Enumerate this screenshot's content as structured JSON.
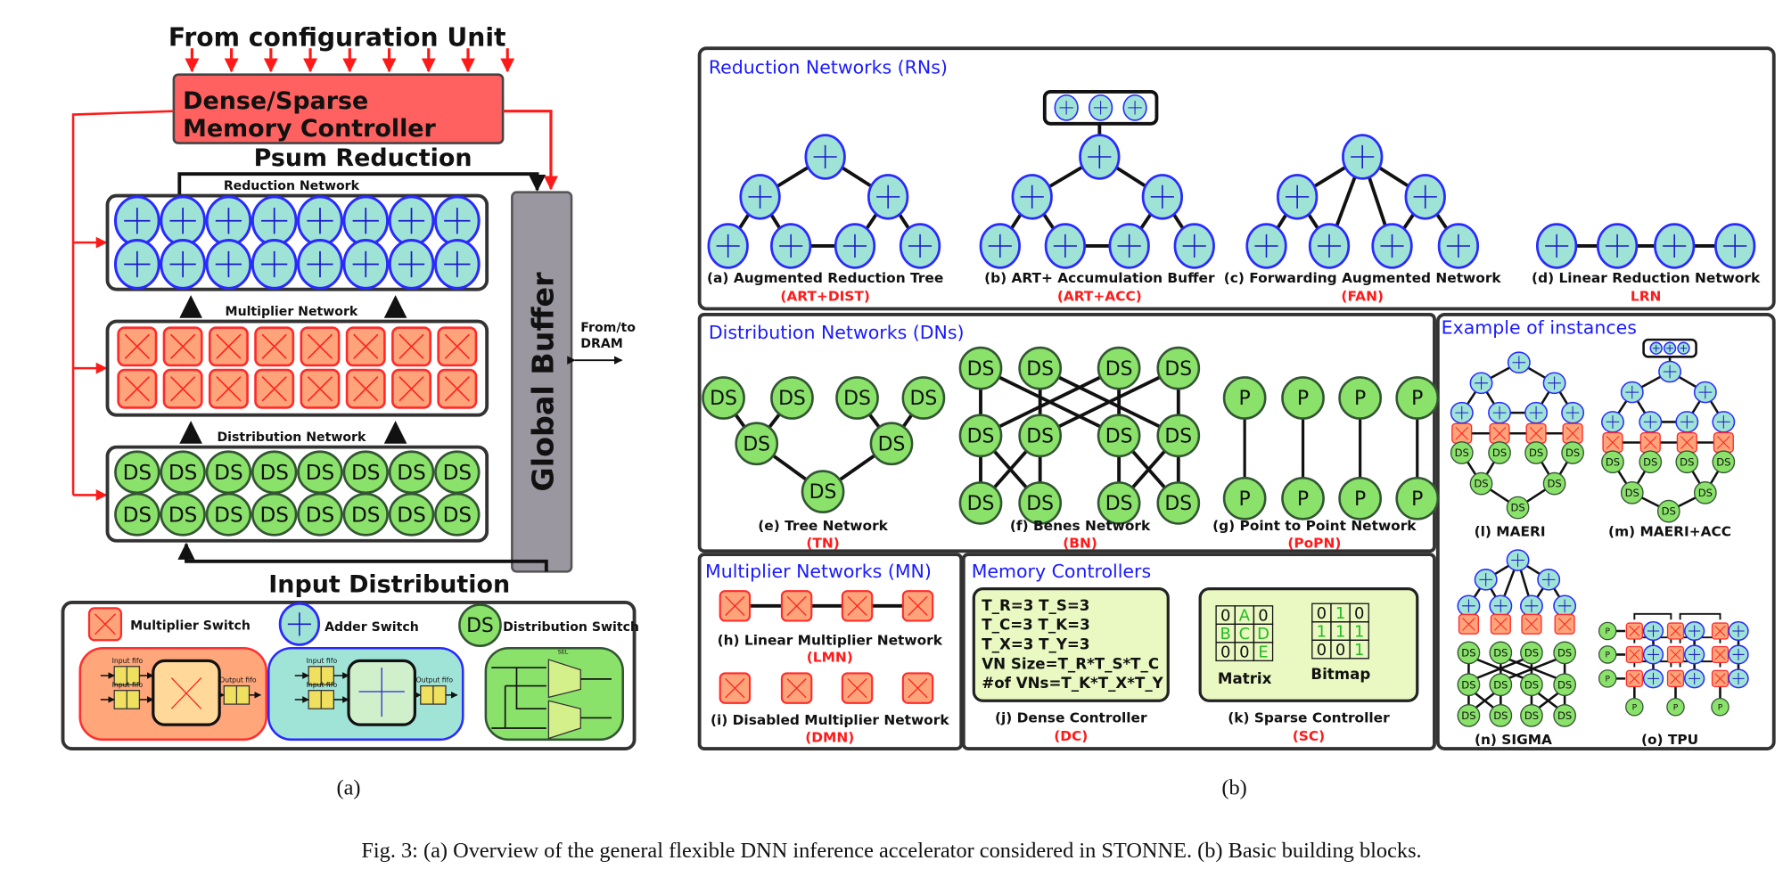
{
  "left": {
    "config_title": "From configuration Unit",
    "controller_line1": "Dense/Sparse",
    "controller_line2": "Memory Controller",
    "psum_label": "Psum Reduction",
    "reduction_network": "Reduction Network",
    "multiplier_network": "Multiplier Network",
    "distribution_network": "Distribution Network",
    "global_buffer": "Global Buffer",
    "dram_line1": "From/to",
    "dram_line2": "DRAM",
    "input_distribution": "Input Distribution",
    "legend": {
      "multiplier_switch": "Multiplier Switch",
      "adder_switch": "Adder Switch",
      "distribution_switch": "Distribution Switch",
      "input_fifo": "Input fifo",
      "output_fifo": "Output fifo",
      "sel": "SEL"
    },
    "caption": "(a)"
  },
  "labels": {
    "ds": "DS",
    "p": "P"
  },
  "colors": {
    "adder_fill": "#9fe3d6",
    "adder_stroke": "#2a2aff",
    "mult_fill": "#ffa47a",
    "mult_stroke": "#ff2a2a",
    "ds_fill": "#8ae26a",
    "ds_stroke": "#335533",
    "controller": "#ff6060",
    "buffer": "#9a97a0",
    "title_blue": "#1a1aff",
    "abbr_red": "#ff1a1a"
  },
  "right": {
    "rn": {
      "title": "Reduction Networks (RNs)",
      "items": [
        {
          "label": "(a) Augmented Reduction Tree",
          "abbr": "(ART+DIST)"
        },
        {
          "label": "(b) ART+ Accumulation Buffer",
          "abbr": "(ART+ACC)"
        },
        {
          "label": "(c) Forwarding Augmented Network",
          "abbr": "(FAN)"
        },
        {
          "label": "(d) Linear Reduction Network",
          "abbr": "LRN"
        }
      ]
    },
    "dn": {
      "title": "Distribution Networks (DNs)",
      "items": [
        {
          "label": "(e) Tree Network",
          "abbr": "(TN)"
        },
        {
          "label": "(f) Benes Network",
          "abbr": "(BN)"
        },
        {
          "label": "(g) Point to Point Network",
          "abbr": "(PoPN)"
        }
      ]
    },
    "mn": {
      "title": "Multiplier Networks (MN)",
      "items": [
        {
          "label": "(h) Linear Multiplier Network",
          "abbr": "(LMN)"
        },
        {
          "label": "(i) Disabled Multiplier Network",
          "abbr": "(DMN)"
        }
      ]
    },
    "mc": {
      "title": "Memory Controllers",
      "dense_lines": [
        "T_R=3  T_S=3",
        "T_C=3  T_K=3",
        "T_X=3  T_Y=3",
        "VN Size=T_R*T_S*T_C",
        "#of VNs=T_K*T_X*T_Y"
      ],
      "matrix": [
        [
          "0",
          "A",
          "0"
        ],
        [
          "B",
          "C",
          "D"
        ],
        [
          "0",
          "0",
          "E"
        ]
      ],
      "bitmap": [
        [
          "0",
          "1",
          "0"
        ],
        [
          "1",
          "1",
          "1"
        ],
        [
          "0",
          "0",
          "1"
        ]
      ],
      "matrix_label": "Matrix",
      "bitmap_label": "Bitmap",
      "items": [
        {
          "label": "(j) Dense Controller",
          "abbr": "(DC)"
        },
        {
          "label": "(k) Sparse Controller",
          "abbr": "(SC)"
        }
      ]
    },
    "instances": {
      "title": "Example of instances",
      "items": [
        "(l) MAERI",
        "(m) MAERI+ACC",
        "(n) SIGMA",
        "(o) TPU"
      ]
    },
    "caption": "(b)"
  },
  "figure_caption": "Fig. 3: (a) Overview of the general flexible DNN inference accelerator considered in STONNE. (b) Basic building blocks."
}
